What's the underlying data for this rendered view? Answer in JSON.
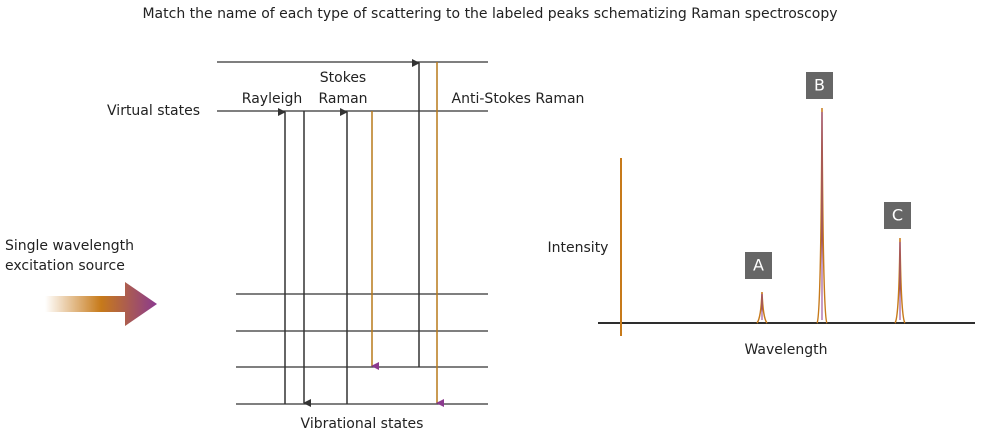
{
  "title": "Match the name of each type of scattering to the labeled peaks schematizing Raman spectroscopy",
  "energy_diagram": {
    "virtual_states_label": "Virtual states",
    "vibrational_states_label": "Vibrational states",
    "rayleigh_label": "Rayleigh",
    "stokes_raman_label": [
      "Stokes",
      "Raman"
    ],
    "anti_stokes_raman_label": "Anti-Stokes Raman",
    "source_label": [
      "Single wavelength",
      "excitation source"
    ]
  },
  "spectrum": {
    "y_axis_label": "Intensity",
    "x_axis_label": "Wavelength",
    "peaks": [
      {
        "label": "A"
      },
      {
        "label": "B"
      },
      {
        "label": "C"
      }
    ]
  }
}
